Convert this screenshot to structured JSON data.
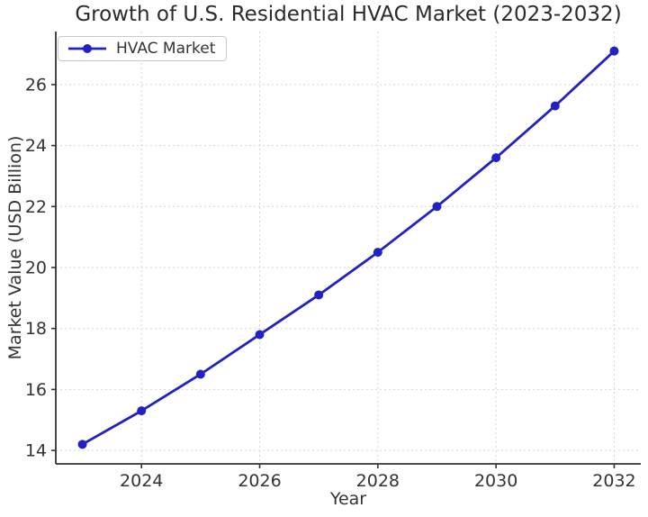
{
  "figure": {
    "background": "#ffffff"
  },
  "chart_data": {
    "type": "line",
    "title": "Growth of U.S. Residential HVAC Market (2023-2032)",
    "xlabel": "Year",
    "ylabel": "Market Value (USD Billion)",
    "x": [
      2023,
      2024,
      2025,
      2026,
      2027,
      2028,
      2029,
      2030,
      2031,
      2032
    ],
    "series": [
      {
        "name": "HVAC Market",
        "color": "#2222c2",
        "marker": "circle",
        "values": [
          14.2,
          15.3,
          16.5,
          17.8,
          19.1,
          20.5,
          22.0,
          23.6,
          25.3,
          27.1
        ]
      }
    ],
    "xticks": [
      2024,
      2026,
      2028,
      2030,
      2032
    ],
    "yticks": [
      14,
      16,
      18,
      20,
      22,
      24,
      26
    ],
    "xlim": [
      2022.55,
      2032.45
    ],
    "ylim": [
      13.56,
      27.74
    ],
    "grid": true,
    "grid_style": "dotted",
    "grid_color": "#d6d6d6",
    "axis_color": "#333333",
    "tick_label_color": "#333333",
    "legend": {
      "position": "upper left",
      "entries": [
        "HVAC Market"
      ]
    }
  }
}
